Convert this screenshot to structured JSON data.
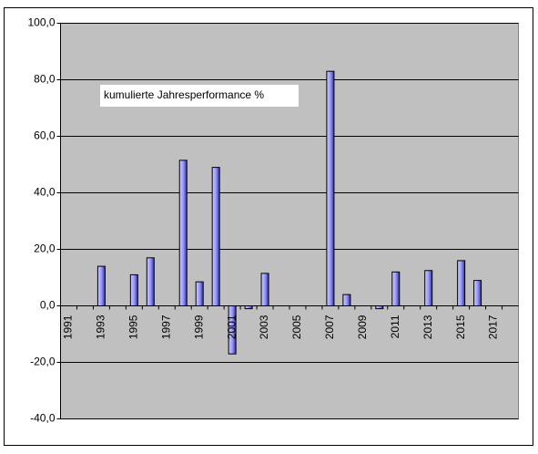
{
  "chart_data": {
    "type": "bar",
    "annotation": "kumulierte Jahresperformance %",
    "categories": [
      "1991",
      null,
      "1993",
      null,
      "1995",
      null,
      "1997",
      null,
      "1999",
      null,
      "2001",
      null,
      "2003",
      null,
      "2005",
      null,
      "2007",
      null,
      "2009",
      null,
      "2011",
      null,
      "2013",
      null,
      "2015",
      null,
      "2017",
      null
    ],
    "values": [
      null,
      null,
      14,
      null,
      11,
      17,
      null,
      51.5,
      8.5,
      49,
      -17,
      -1,
      11.5,
      null,
      null,
      null,
      83,
      4,
      null,
      -1,
      12,
      null,
      12.5,
      null,
      16,
      9,
      null,
      null
    ],
    "color": "#9999ff",
    "ylim": [
      -40,
      100
    ],
    "yticks": [
      {
        "value": -40,
        "label": "-40,0"
      },
      {
        "value": -20,
        "label": "-20,0"
      },
      {
        "value": 0,
        "label": "0,0"
      },
      {
        "value": 20,
        "label": "20,0"
      },
      {
        "value": 40,
        "label": "40,0"
      },
      {
        "value": 60,
        "label": "60,0"
      },
      {
        "value": 80,
        "label": "80,0"
      },
      {
        "value": 100,
        "label": "100,0"
      }
    ],
    "grid": true
  }
}
